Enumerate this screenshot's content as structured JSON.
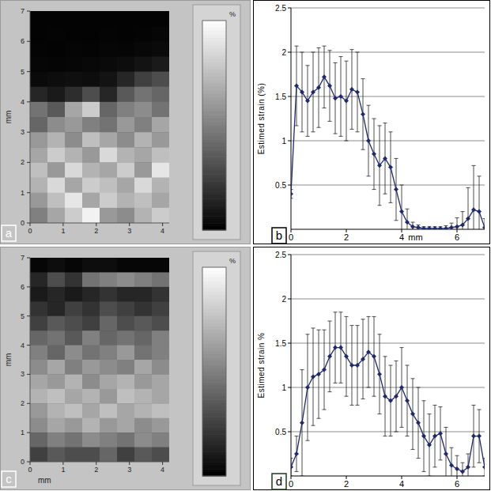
{
  "chart_data": [
    {
      "type": "heatmap",
      "panel_label": "a",
      "ylabel": "mm",
      "xlim": [
        0,
        4.2
      ],
      "xticks": [
        0,
        1,
        2,
        3,
        4
      ],
      "ylim": [
        0,
        7
      ],
      "yticks": [
        0,
        1,
        2,
        3,
        4,
        5,
        6,
        7
      ],
      "colorbar_label": "%",
      "colorbar_range": [
        0,
        2
      ],
      "cells": [
        [
          0.02,
          0.02,
          0.02,
          0.02,
          0.02,
          0.02,
          0.02,
          0.02
        ],
        [
          0.02,
          0.03,
          0.02,
          0.02,
          0.03,
          0.02,
          0.03,
          0.05
        ],
        [
          0.03,
          0.02,
          0.04,
          0.03,
          0.05,
          0.04,
          0.06,
          0.08
        ],
        [
          0.05,
          0.04,
          0.05,
          0.06,
          0.08,
          0.1,
          0.15,
          0.2
        ],
        [
          0.08,
          0.1,
          0.12,
          0.1,
          0.15,
          0.3,
          0.5,
          0.6
        ],
        [
          0.3,
          0.2,
          0.35,
          0.6,
          0.3,
          0.7,
          0.9,
          0.8
        ],
        [
          0.9,
          0.7,
          1.3,
          1.6,
          0.8,
          1.0,
          1.1,
          0.9
        ],
        [
          0.8,
          1.1,
          1.2,
          1.0,
          0.9,
          1.2,
          1.0,
          1.3
        ],
        [
          1.2,
          1.4,
          1.1,
          1.5,
          1.3,
          1.1,
          1.4,
          1.2
        ],
        [
          1.3,
          1.6,
          1.4,
          1.2,
          1.7,
          1.4,
          1.3,
          1.5
        ],
        [
          1.5,
          1.2,
          1.7,
          1.4,
          1.3,
          1.6,
          1.2,
          1.8
        ],
        [
          1.4,
          1.7,
          1.3,
          1.6,
          1.5,
          1.3,
          1.7,
          1.4
        ],
        [
          1.2,
          1.5,
          1.8,
          1.3,
          1.6,
          1.4,
          1.5,
          1.3
        ],
        [
          1.0,
          1.3,
          1.6,
          1.9,
          1.2,
          1.1,
          1.4,
          1.6
        ]
      ]
    },
    {
      "type": "line",
      "panel_label": "b",
      "ylabel": "Estimed strain (%)",
      "xlabel": "mm",
      "xlim": [
        0,
        7
      ],
      "xticks": [
        0,
        2,
        4,
        6
      ],
      "ylim": [
        0,
        2.5
      ],
      "yticks": [
        0.5,
        1,
        1.5,
        2,
        2.5
      ],
      "grid": true,
      "color": "#1f2a6e",
      "marker": "diamond",
      "x": [
        0,
        0.2,
        0.4,
        0.6,
        0.8,
        1,
        1.2,
        1.4,
        1.6,
        1.8,
        2,
        2.2,
        2.4,
        2.6,
        2.8,
        3,
        3.2,
        3.4,
        3.6,
        3.8,
        4,
        4.2,
        4.4,
        4.6,
        4.8,
        5,
        5.2,
        5.4,
        5.6,
        5.8,
        6,
        6.2,
        6.4,
        6.6,
        6.8,
        7
      ],
      "values": [
        0.4,
        1.62,
        1.55,
        1.45,
        1.55,
        1.6,
        1.72,
        1.62,
        1.48,
        1.5,
        1.45,
        1.58,
        1.55,
        1.3,
        1.0,
        0.85,
        0.72,
        0.8,
        0.7,
        0.45,
        0.2,
        0.08,
        0.03,
        0.02,
        0.01,
        0.01,
        0.01,
        0.01,
        0.01,
        0.02,
        0.03,
        0.05,
        0.12,
        0.22,
        0.2,
        0.02
      ],
      "errors": [
        0.05,
        0.45,
        0.45,
        0.4,
        0.45,
        0.45,
        0.35,
        0.4,
        0.4,
        0.45,
        0.45,
        0.45,
        0.45,
        0.4,
        0.4,
        0.4,
        0.45,
        0.4,
        0.4,
        0.35,
        0.3,
        0.15,
        0.05,
        0.03,
        0.02,
        0.02,
        0.02,
        0.02,
        0.03,
        0.05,
        0.1,
        0.15,
        0.35,
        0.5,
        0.4,
        0.1
      ]
    },
    {
      "type": "heatmap",
      "panel_label": "c",
      "ylabel": "mm",
      "xlabel": "mm",
      "xlim": [
        0,
        4.2
      ],
      "xticks": [
        0,
        1,
        2,
        3,
        4
      ],
      "ylim": [
        0,
        7
      ],
      "yticks": [
        0,
        1,
        2,
        3,
        4,
        5,
        6,
        7
      ],
      "colorbar_label": "%",
      "colorbar_range": [
        0,
        2
      ],
      "cells": [
        [
          0.05,
          0.1,
          0.05,
          0.1,
          0.1,
          0.05,
          0.05,
          0.05
        ],
        [
          0.3,
          0.6,
          0.4,
          0.9,
          1.0,
          1.1,
          1.0,
          0.9
        ],
        [
          0.2,
          0.3,
          0.2,
          0.3,
          0.4,
          0.3,
          0.3,
          0.4
        ],
        [
          0.4,
          0.3,
          0.5,
          0.4,
          0.6,
          0.5,
          0.4,
          0.5
        ],
        [
          0.5,
          0.7,
          0.6,
          0.5,
          0.8,
          0.6,
          0.7,
          0.6
        ],
        [
          0.8,
          0.9,
          0.7,
          1.0,
          0.8,
          0.9,
          0.8,
          1.0
        ],
        [
          1.0,
          0.8,
          1.1,
          0.9,
          1.0,
          1.2,
          0.9,
          1.0
        ],
        [
          1.1,
          1.3,
          1.0,
          1.2,
          1.1,
          1.0,
          1.3,
          1.1
        ],
        [
          1.3,
          1.2,
          1.4,
          1.1,
          1.3,
          1.4,
          1.2,
          1.3
        ],
        [
          1.4,
          1.5,
          1.3,
          1.4,
          1.2,
          1.5,
          1.4,
          1.3
        ],
        [
          1.2,
          1.4,
          1.5,
          1.3,
          1.5,
          1.3,
          1.4,
          1.5
        ],
        [
          1.1,
          1.3,
          1.2,
          1.4,
          1.2,
          1.3,
          1.1,
          1.2
        ],
        [
          0.8,
          1.0,
          0.9,
          1.1,
          1.0,
          0.9,
          1.1,
          1.0
        ],
        [
          0.5,
          0.7,
          0.6,
          0.6,
          0.8,
          0.5,
          0.7,
          0.6
        ]
      ]
    },
    {
      "type": "line",
      "panel_label": "d",
      "ylabel": "Estimed strain %",
      "xlim": [
        0,
        7
      ],
      "xticks": [
        0,
        2,
        4,
        6
      ],
      "ylim": [
        0,
        2.5
      ],
      "yticks": [
        0.5,
        1,
        1.5,
        2,
        2.5
      ],
      "grid": true,
      "color": "#1f2a6e",
      "marker": "diamond",
      "x": [
        0,
        0.2,
        0.4,
        0.6,
        0.8,
        1,
        1.2,
        1.4,
        1.6,
        1.8,
        2,
        2.2,
        2.4,
        2.6,
        2.8,
        3,
        3.2,
        3.4,
        3.6,
        3.8,
        4,
        4.2,
        4.4,
        4.6,
        4.8,
        5,
        5.2,
        5.4,
        5.6,
        5.8,
        6,
        6.2,
        6.4,
        6.6,
        6.8,
        7
      ],
      "values": [
        0.1,
        0.25,
        0.6,
        1.0,
        1.12,
        1.15,
        1.2,
        1.35,
        1.45,
        1.45,
        1.35,
        1.25,
        1.25,
        1.32,
        1.4,
        1.35,
        1.15,
        0.9,
        0.85,
        0.9,
        1.0,
        0.85,
        0.7,
        0.6,
        0.45,
        0.35,
        0.45,
        0.48,
        0.25,
        0.12,
        0.08,
        0.05,
        0.1,
        0.45,
        0.45,
        0.1
      ],
      "errors": [
        0.1,
        0.2,
        0.6,
        0.6,
        0.55,
        0.5,
        0.45,
        0.4,
        0.4,
        0.4,
        0.45,
        0.45,
        0.45,
        0.45,
        0.4,
        0.45,
        0.45,
        0.45,
        0.4,
        0.4,
        0.45,
        0.4,
        0.4,
        0.4,
        0.4,
        0.35,
        0.35,
        0.3,
        0.3,
        0.2,
        0.15,
        0.1,
        0.15,
        0.35,
        0.3,
        0.1
      ]
    }
  ]
}
